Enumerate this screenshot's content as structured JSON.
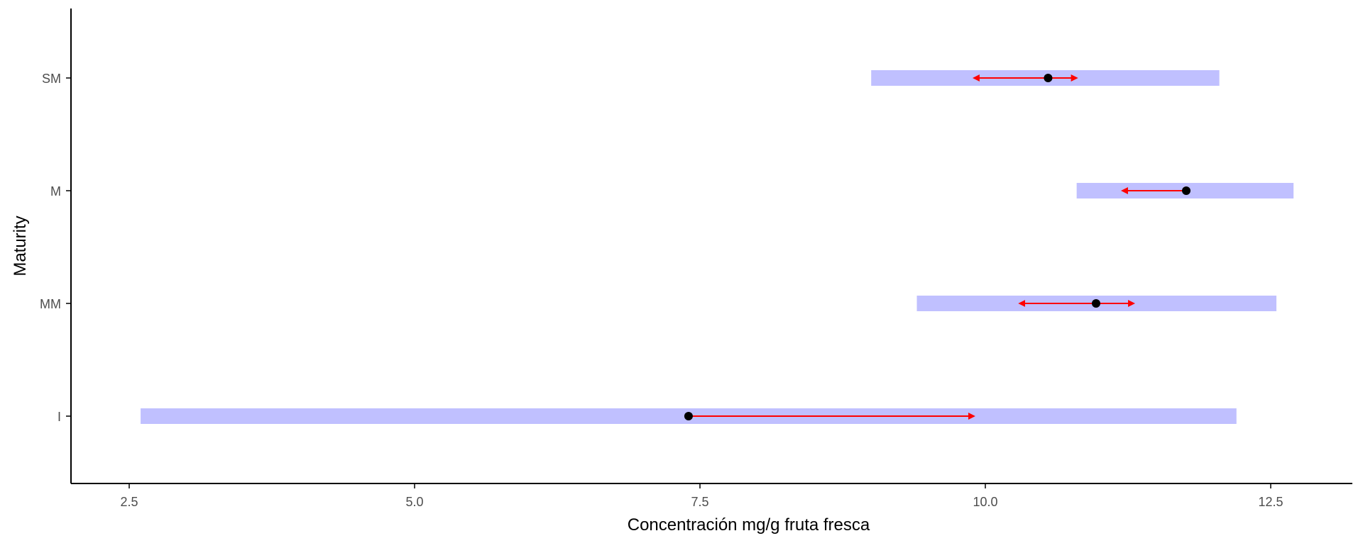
{
  "chart_data": {
    "type": "range-dot-arrow",
    "title": "",
    "xlabel": "Concentración mg/g fruta fresca",
    "ylabel": "Maturity",
    "xlim": [
      2.2,
      13.2
    ],
    "xticks": [
      2.5,
      5.0,
      7.5,
      10.0,
      12.5
    ],
    "xtick_labels": [
      "2.5",
      "5.0",
      "7.5",
      "10.0",
      "12.5"
    ],
    "categories": [
      "I",
      "MM",
      "M",
      "SM"
    ],
    "grid": false,
    "legend": "none",
    "colors": {
      "range": "#c0c0ff",
      "arrow": "#ff0000",
      "point": "#000000",
      "axis": "#000000",
      "tick_text": "#4d4d4d"
    },
    "rows": [
      {
        "category": "I",
        "range": [
          2.6,
          12.2
        ],
        "point": 7.4,
        "arrows": [
          9.9
        ]
      },
      {
        "category": "MM",
        "range": [
          9.4,
          12.55
        ],
        "point": 10.97,
        "arrows": [
          10.3,
          11.3
        ]
      },
      {
        "category": "M",
        "range": [
          10.8,
          12.7
        ],
        "point": 11.76,
        "arrows": [
          11.2
        ]
      },
      {
        "category": "SM",
        "range": [
          9.0,
          12.05
        ],
        "point": 10.55,
        "arrows": [
          9.9,
          10.8
        ]
      }
    ]
  }
}
